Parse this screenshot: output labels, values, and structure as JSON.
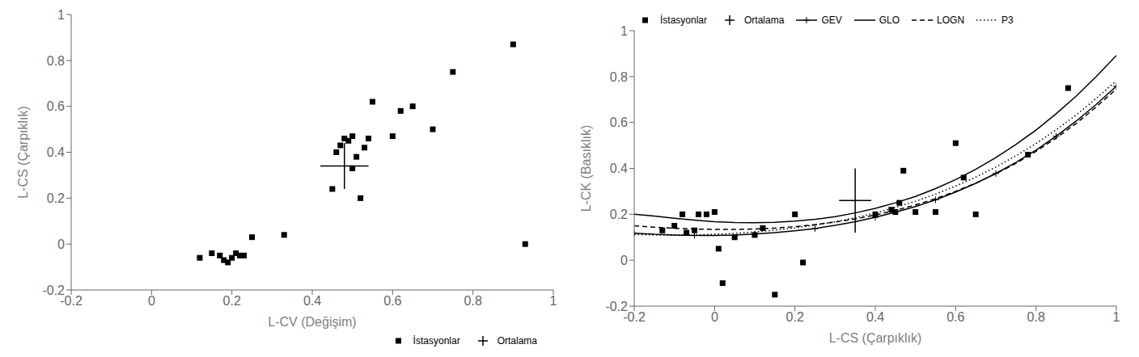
{
  "chart_data": [
    {
      "type": "scatter",
      "xlabel": "L-CV (Değişim)",
      "ylabel": "L-CS (Çarpıklık)",
      "xlim": [
        -0.2,
        1.0
      ],
      "ylim": [
        -0.2,
        1.0
      ],
      "xticks": [
        -0.2,
        0,
        0.2,
        0.4,
        0.6,
        0.8,
        1
      ],
      "yticks": [
        -0.2,
        0,
        0.2,
        0.4,
        0.6,
        0.8,
        1
      ],
      "grid": false,
      "legend": "lower right",
      "series": [
        {
          "name": "İstasyonlar",
          "type": "scatter",
          "marker": "square",
          "color": "black",
          "x": [
            0.12,
            0.15,
            0.17,
            0.18,
            0.19,
            0.2,
            0.21,
            0.22,
            0.23,
            0.25,
            0.33,
            0.45,
            0.46,
            0.47,
            0.48,
            0.49,
            0.5,
            0.5,
            0.51,
            0.52,
            0.53,
            0.54,
            0.55,
            0.6,
            0.62,
            0.65,
            0.7,
            0.75,
            0.9,
            0.93
          ],
          "y": [
            -0.06,
            -0.04,
            -0.05,
            -0.07,
            -0.08,
            -0.06,
            -0.04,
            -0.05,
            -0.05,
            0.03,
            0.04,
            0.24,
            0.4,
            0.43,
            0.46,
            0.45,
            0.47,
            0.33,
            0.38,
            0.2,
            0.42,
            0.46,
            0.62,
            0.47,
            0.58,
            0.6,
            0.5,
            0.75,
            0.87,
            0.0
          ]
        },
        {
          "name": "Ortalama",
          "type": "errorbar",
          "marker": "plus",
          "color": "black",
          "x": [
            0.48
          ],
          "y": [
            0.34
          ],
          "x_error": [
            0.06
          ],
          "y_error": [
            0.1
          ]
        }
      ]
    },
    {
      "type": "scatter",
      "xlabel": "L-CS (Çarpıklık)",
      "ylabel": "L-CK (Basıklık)",
      "xlim": [
        -0.2,
        1.0
      ],
      "ylim": [
        -0.2,
        1.0
      ],
      "xticks": [
        -0.2,
        0,
        0.2,
        0.4,
        0.6,
        0.8,
        1
      ],
      "yticks": [
        -0.2,
        0,
        0.2,
        0.4,
        0.6,
        0.8,
        1
      ],
      "grid": false,
      "legend": "upper left",
      "series": [
        {
          "name": "İstasyonlar",
          "type": "scatter",
          "marker": "square",
          "color": "black",
          "x": [
            -0.13,
            -0.1,
            -0.08,
            -0.07,
            -0.05,
            -0.04,
            -0.02,
            0.0,
            0.01,
            0.02,
            0.05,
            0.1,
            0.12,
            0.15,
            0.2,
            0.22,
            0.4,
            0.44,
            0.45,
            0.46,
            0.47,
            0.5,
            0.55,
            0.6,
            0.62,
            0.65,
            0.78,
            0.88
          ],
          "y": [
            0.13,
            0.15,
            0.2,
            0.12,
            0.13,
            0.2,
            0.2,
            0.21,
            0.05,
            -0.1,
            0.1,
            0.11,
            0.14,
            -0.15,
            0.2,
            -0.01,
            0.2,
            0.22,
            0.21,
            0.25,
            0.39,
            0.21,
            0.21,
            0.51,
            0.36,
            0.2,
            0.46,
            0.75
          ]
        },
        {
          "name": "Ortalama",
          "type": "errorbar",
          "marker": "plus",
          "color": "black",
          "x": [
            0.35
          ],
          "y": [
            0.26
          ],
          "x_error": [
            0.04
          ],
          "y_error": [
            0.14
          ]
        },
        {
          "name": "GEV",
          "type": "line",
          "line_style": "solid",
          "marker": "plus",
          "color": "black",
          "x": [
            -0.2,
            -0.15,
            -0.1,
            -0.05,
            0.0,
            0.05,
            0.1,
            0.15,
            0.2,
            0.25,
            0.3,
            0.35,
            0.4,
            0.45,
            0.5,
            0.55,
            0.6,
            0.65,
            0.7,
            0.75,
            0.8,
            0.85,
            0.9,
            0.95,
            1.0
          ],
          "y": [
            0.118,
            0.113,
            0.11,
            0.108,
            0.108,
            0.11,
            0.114,
            0.12,
            0.128,
            0.138,
            0.152,
            0.168,
            0.187,
            0.209,
            0.234,
            0.263,
            0.297,
            0.335,
            0.378,
            0.426,
            0.48,
            0.54,
            0.606,
            0.679,
            0.758
          ]
        },
        {
          "name": "GLO",
          "type": "line",
          "line_style": "solid",
          "color": "black",
          "x": [
            -0.2,
            -0.15,
            -0.1,
            -0.05,
            0.0,
            0.05,
            0.1,
            0.15,
            0.2,
            0.25,
            0.3,
            0.35,
            0.4,
            0.45,
            0.5,
            0.55,
            0.6,
            0.65,
            0.7,
            0.75,
            0.8,
            0.85,
            0.9,
            0.95,
            1.0
          ],
          "y": [
            0.2,
            0.192,
            0.183,
            0.175,
            0.168,
            0.164,
            0.163,
            0.165,
            0.17,
            0.178,
            0.19,
            0.206,
            0.226,
            0.25,
            0.278,
            0.312,
            0.351,
            0.396,
            0.447,
            0.504,
            0.567,
            0.638,
            0.715,
            0.8,
            0.892
          ]
        },
        {
          "name": "LOGN",
          "type": "line",
          "line_style": "dashed",
          "color": "black",
          "x": [
            -0.2,
            -0.15,
            -0.1,
            -0.05,
            0.0,
            0.05,
            0.1,
            0.15,
            0.2,
            0.25,
            0.3,
            0.35,
            0.4,
            0.45,
            0.5,
            0.55,
            0.6,
            0.65,
            0.7,
            0.75,
            0.8,
            0.85,
            0.9,
            0.95,
            1.0
          ],
          "y": [
            0.15,
            0.144,
            0.139,
            0.136,
            0.134,
            0.134,
            0.136,
            0.14,
            0.146,
            0.155,
            0.166,
            0.18,
            0.197,
            0.217,
            0.241,
            0.268,
            0.3,
            0.336,
            0.377,
            0.422,
            0.474,
            0.532,
            0.596,
            0.668,
            0.746
          ]
        },
        {
          "name": "P3",
          "type": "line",
          "line_style": "dotted",
          "color": "black",
          "x": [
            -0.2,
            -0.15,
            -0.1,
            -0.05,
            0.0,
            0.05,
            0.1,
            0.15,
            0.2,
            0.25,
            0.3,
            0.35,
            0.4,
            0.45,
            0.5,
            0.55,
            0.6,
            0.65,
            0.7,
            0.75,
            0.8,
            0.85,
            0.9,
            0.95,
            1.0
          ],
          "y": [
            0.112,
            0.11,
            0.109,
            0.11,
            0.113,
            0.117,
            0.123,
            0.131,
            0.141,
            0.153,
            0.168,
            0.185,
            0.206,
            0.23,
            0.257,
            0.288,
            0.323,
            0.362,
            0.406,
            0.455,
            0.508,
            0.568,
            0.633,
            0.705,
            0.782
          ]
        }
      ]
    }
  ]
}
